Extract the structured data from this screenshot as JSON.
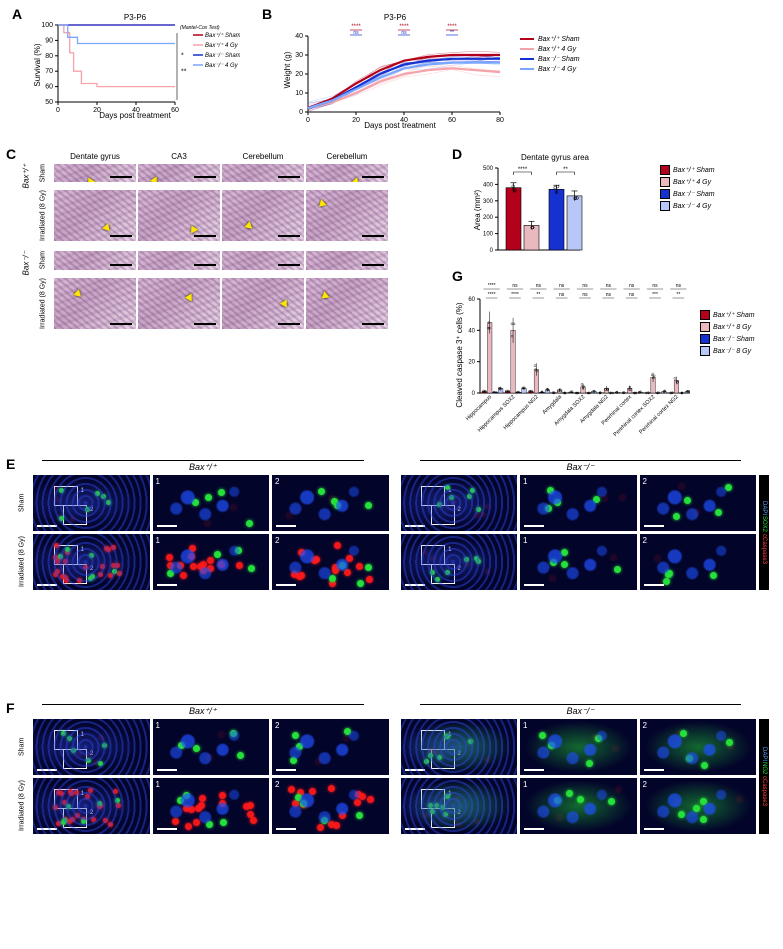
{
  "genotypes": {
    "wt": "Bax⁺/⁺",
    "ko": "Bax⁻/⁻"
  },
  "conditions": {
    "sham": "Sham",
    "irr4": "4 Gy",
    "irr8": "Irradiated (8 Gy)"
  },
  "colors": {
    "wt_sham": "#b3001b",
    "wt_irr": "#f5a3aa",
    "ko_sham": "#1531d1",
    "ko_irr": "#7aa6ff",
    "wt_irr_bar": "#e9b9bf",
    "ko_irr_bar": "#b8c7f7",
    "axis": "#000000",
    "bg": "#ffffff",
    "grid": "#e0e0e0"
  },
  "panelA": {
    "title": "P3-P6",
    "xlabel": "Days post treatment",
    "ylabel": "Survival (%)",
    "xlim": [
      0,
      60
    ],
    "xticks": [
      0,
      20,
      40,
      60
    ],
    "ylim": [
      50,
      100
    ],
    "yticks": [
      50,
      60,
      70,
      80,
      90,
      100
    ],
    "stat_note": "(Mantel-Cox Test)",
    "stat_marks": [
      "*",
      "**"
    ],
    "series": [
      {
        "label": "Bax⁺/⁺ Sham",
        "color": "#b3001b",
        "points": [
          [
            0,
            100
          ],
          [
            60,
            100
          ]
        ]
      },
      {
        "label": "Bax⁺/⁺ 4 Gy",
        "color": "#f5a3aa",
        "points": [
          [
            0,
            100
          ],
          [
            3,
            95
          ],
          [
            6,
            82
          ],
          [
            8,
            70
          ],
          [
            12,
            62
          ],
          [
            20,
            60
          ],
          [
            60,
            60
          ]
        ]
      },
      {
        "label": "Bax⁻/⁻ Sham",
        "color": "#1531d1",
        "points": [
          [
            0,
            100
          ],
          [
            60,
            100
          ]
        ]
      },
      {
        "label": "Bax⁻/⁻ 4 Gy",
        "color": "#7aa6ff",
        "points": [
          [
            0,
            100
          ],
          [
            5,
            92
          ],
          [
            10,
            88
          ],
          [
            60,
            88
          ]
        ]
      }
    ],
    "legend_items": [
      {
        "label": "Bax⁺/⁺ Sham",
        "color": "#b3001b"
      },
      {
        "label": "Bax⁺/⁺ 4 Gy",
        "color": "#f5a3aa"
      },
      {
        "label": "Bax⁻/⁻ Sham",
        "color": "#1531d1"
      },
      {
        "label": "Bax⁻/⁻ 4 Gy",
        "color": "#7aa6ff"
      }
    ]
  },
  "panelB": {
    "title": "P3-P6",
    "xlabel": "Days post treatment",
    "ylabel": "Weight (g)",
    "xlim": [
      0,
      80
    ],
    "xticks": [
      0,
      20,
      40,
      60,
      80
    ],
    "ylim": [
      0,
      40
    ],
    "yticks": [
      0,
      10,
      20,
      30,
      40
    ],
    "sig_bars": [
      {
        "x": 20,
        "top": "****",
        "bottom": "ns",
        "top_color": "#b3001b",
        "bot_color": "#1531d1"
      },
      {
        "x": 40,
        "top": "****",
        "bottom": "ns",
        "top_color": "#b3001b",
        "bot_color": "#1531d1"
      },
      {
        "x": 60,
        "top": "****",
        "bottom": "**",
        "top_color": "#b3001b",
        "bot_color": "#1531d1"
      }
    ],
    "mean_series": [
      {
        "color": "#b3001b",
        "width": 2.2,
        "points": [
          [
            0,
            2
          ],
          [
            10,
            7
          ],
          [
            20,
            15
          ],
          [
            30,
            22
          ],
          [
            40,
            27
          ],
          [
            50,
            29
          ],
          [
            60,
            30
          ],
          [
            70,
            30
          ],
          [
            80,
            30
          ]
        ]
      },
      {
        "color": "#f5a3aa",
        "width": 2.2,
        "points": [
          [
            0,
            2
          ],
          [
            10,
            5
          ],
          [
            20,
            10
          ],
          [
            30,
            16
          ],
          [
            40,
            20
          ],
          [
            50,
            22
          ],
          [
            60,
            23
          ],
          [
            70,
            22
          ],
          [
            80,
            21
          ]
        ]
      },
      {
        "color": "#1531d1",
        "width": 2.2,
        "points": [
          [
            0,
            2
          ],
          [
            10,
            6
          ],
          [
            20,
            13
          ],
          [
            30,
            20
          ],
          [
            40,
            25
          ],
          [
            50,
            27
          ],
          [
            60,
            28
          ],
          [
            70,
            28
          ],
          [
            80,
            28
          ]
        ]
      },
      {
        "color": "#7aa6ff",
        "width": 2.2,
        "points": [
          [
            0,
            2
          ],
          [
            10,
            6
          ],
          [
            20,
            12
          ],
          [
            30,
            18
          ],
          [
            40,
            23
          ],
          [
            50,
            25
          ],
          [
            60,
            26
          ],
          [
            70,
            26
          ],
          [
            80,
            26
          ]
        ]
      }
    ],
    "thin_series_count": 16
  },
  "panelC": {
    "columns": [
      "Dentate gyrus",
      "CA3",
      "Cerebellum",
      "Cerebellum"
    ],
    "row_groups": [
      {
        "genotype": "Bax⁺/⁺",
        "rows": [
          "Sham",
          "Irradiated (8 Gy)"
        ]
      },
      {
        "genotype": "Bax⁻/⁻",
        "rows": [
          "Sham",
          "Irradiated (8 Gy)"
        ]
      }
    ],
    "arrow_color": "#ffe600"
  },
  "panelD": {
    "title": "Dentate gyrus area",
    "ylabel": "Area (mm²)",
    "ylim": [
      0,
      500
    ],
    "yticks": [
      0,
      100,
      200,
      300,
      400,
      500
    ],
    "bars": [
      {
        "label": "Bax⁺/⁺ Sham",
        "value": 380,
        "err": 30,
        "color": "#b3001b"
      },
      {
        "label": "Bax⁺/⁺ 4 Gy",
        "value": 150,
        "err": 25,
        "color": "#e9b9bf"
      },
      {
        "label": "Bax⁻/⁻ Sham",
        "value": 370,
        "err": 25,
        "color": "#1531d1"
      },
      {
        "label": "Bax⁻/⁻ 4 Gy",
        "value": 330,
        "err": 30,
        "color": "#b8c7f7"
      }
    ],
    "sig": [
      {
        "from": 0,
        "to": 1,
        "label": "****"
      },
      {
        "from": 2,
        "to": 3,
        "label": "**"
      }
    ],
    "legend": [
      {
        "label": "Bax⁺/⁺ Sham",
        "color": "#b3001b"
      },
      {
        "label": "Bax⁺/⁺ 4 Gy",
        "color": "#e9b9bf"
      },
      {
        "label": "Bax⁻/⁻ Sham",
        "color": "#1531d1"
      },
      {
        "label": "Bax⁻/⁻ 4 Gy",
        "color": "#b8c7f7"
      }
    ]
  },
  "panelG": {
    "ylabel": "Cleaved caspase 3⁺ cells (%)",
    "ylim": [
      0,
      60
    ],
    "yticks": [
      0,
      20,
      40,
      60
    ],
    "categories": [
      "Hippocampus",
      "Hippocampus SOX2",
      "Hippocampus NG2",
      "Amygdala",
      "Amygdala SOX2",
      "Amygdala NG2",
      "Perirhinal cortex",
      "Perirhinal cortex SOX2",
      "Perirhinal cortex NG2"
    ],
    "series": [
      {
        "label": "Bax⁺/⁺ Sham",
        "color": "#b3001b",
        "values": [
          1,
          1,
          1,
          0,
          0,
          0,
          0,
          0,
          0
        ],
        "err": [
          0.5,
          0.5,
          0.5,
          0.3,
          0.3,
          0.3,
          0.3,
          0.3,
          0.3
        ]
      },
      {
        "label": "Bax⁺/⁺ 8 Gy",
        "color": "#e9b9bf",
        "values": [
          45,
          40,
          15,
          2,
          4,
          3,
          3,
          10,
          8
        ],
        "err": [
          7,
          8,
          4,
          1,
          2,
          1.5,
          1.5,
          3,
          2.5
        ]
      },
      {
        "label": "Bax⁻/⁻ Sham",
        "color": "#1531d1",
        "values": [
          0.5,
          0.5,
          0.5,
          0,
          0,
          0,
          0,
          0,
          0
        ],
        "err": [
          0.3,
          0.3,
          0.3,
          0.2,
          0.2,
          0.2,
          0.2,
          0.2,
          0.2
        ]
      },
      {
        "label": "Bax⁻/⁻ 8 Gy",
        "color": "#b8c7f7",
        "values": [
          3,
          3,
          2,
          0.5,
          1,
          0.5,
          0.5,
          1,
          1
        ],
        "err": [
          1,
          1,
          1,
          0.4,
          0.5,
          0.4,
          0.4,
          0.5,
          0.5
        ]
      }
    ],
    "sig_top": [
      [
        "****",
        "ns",
        "ns"
      ],
      [
        "ns",
        "ns",
        "ns"
      ],
      [
        "ns",
        "ns",
        "ns"
      ]
    ],
    "sig_bottom": [
      [
        "****",
        "****",
        "**"
      ],
      [
        "ns",
        "ns",
        "ns"
      ],
      [
        "ns",
        "***",
        "**"
      ]
    ],
    "legend": [
      {
        "label": "Bax⁺/⁺ Sham",
        "color": "#b3001b"
      },
      {
        "label": "Bax⁺/⁺ 8 Gy",
        "color": "#e9b9bf"
      },
      {
        "label": "Bax⁻/⁻ Sham",
        "color": "#1531d1"
      },
      {
        "label": "Bax⁻/⁻ 8 Gy",
        "color": "#b8c7f7"
      }
    ]
  },
  "panelE": {
    "stains": [
      "DAPI",
      "SOX2",
      "cCaspase3"
    ],
    "stain_colors": [
      "#5aa8ff",
      "#25e03a",
      "#ff4040"
    ],
    "rows": [
      "Sham",
      "Irradiated (8 Gy)"
    ],
    "cols_genotype": [
      "Bax⁺/⁺",
      "Bax⁻/⁻"
    ],
    "roi_labels": [
      "1",
      "2"
    ]
  },
  "panelF": {
    "stains": [
      "DAPI",
      "NG2",
      "cCaspase3"
    ],
    "stain_colors": [
      "#5aa8ff",
      "#25e03a",
      "#ff4040"
    ],
    "rows": [
      "Sham",
      "Irradiated (8 Gy)"
    ],
    "cols_genotype": [
      "Bax⁺/⁺",
      "Bax⁻/⁻"
    ],
    "roi_labels": [
      "1",
      "2"
    ]
  },
  "panel_labels": {
    "A": "A",
    "B": "B",
    "C": "C",
    "D": "D",
    "E": "E",
    "F": "F",
    "G": "G"
  }
}
